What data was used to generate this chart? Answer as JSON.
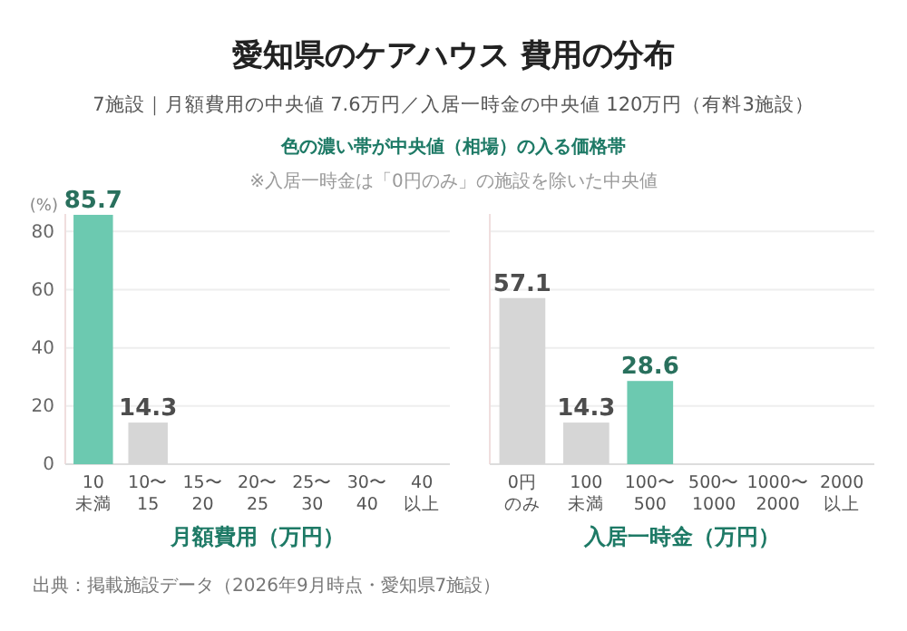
{
  "chart_data": [
    {
      "type": "bar",
      "title": "愛知県のケアハウス 費用の分布",
      "subtitle": "7施設｜月額費用の中央値 7.6万円／入居一時金の中央値 120万円（有料3施設）",
      "annotations": [
        "色の濃い帯が中央値（相場）の入る価格帯",
        "※入居一時金は「0円のみ」の施設を除いた中央値",
        "出典：掲載施設データ（2026年9月時点・愛知県7施設）"
      ],
      "categories": [
        "10未満",
        "10〜15",
        "15〜20",
        "20〜25",
        "25〜30",
        "30〜40",
        "40以上"
      ],
      "values": [
        85.7,
        14.3,
        0,
        0,
        0,
        0,
        0
      ],
      "value_labels": [
        "85.7",
        "14.3",
        null,
        null,
        null,
        null,
        null
      ],
      "colors": [
        "#6cc9b0",
        "#d6d6d6",
        "#d6d6d6",
        "#d6d6d6",
        "#d6d6d6",
        "#d6d6d6",
        "#d6d6d6"
      ],
      "xlabel": "月額費用（万円）",
      "ylabel": "(%)",
      "ylim": [
        0,
        86
      ],
      "yticks": [
        0,
        20,
        40,
        60,
        80
      ],
      "grid": "y"
    },
    {
      "type": "bar",
      "categories": [
        "0円のみ",
        "100未満",
        "100〜500",
        "500〜1000",
        "1000〜2000",
        "2000以上"
      ],
      "values": [
        57.1,
        14.3,
        28.6,
        0,
        0,
        0
      ],
      "value_labels": [
        "57.1",
        "14.3",
        "28.6",
        null,
        null,
        null
      ],
      "colors": [
        "#d6d6d6",
        "#d6d6d6",
        "#6cc9b0",
        "#d6d6d6",
        "#d6d6d6",
        "#d6d6d6"
      ],
      "xlabel": "入居一時金（万円）",
      "ylim": [
        0,
        86
      ],
      "yticks": [
        0,
        20,
        40,
        60,
        80
      ],
      "grid": "y",
      "tick_labels": "x"
    }
  ]
}
